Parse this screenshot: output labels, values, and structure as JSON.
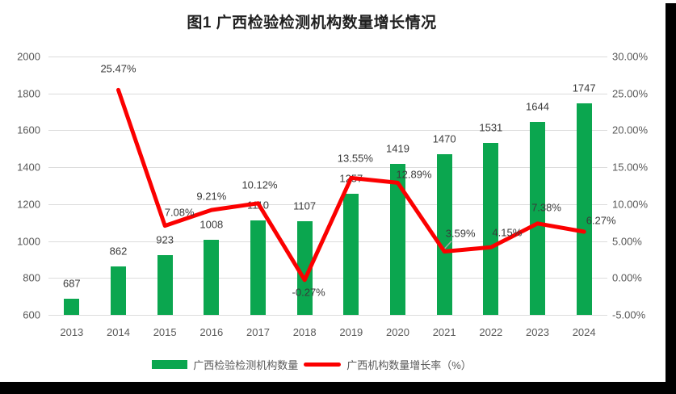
{
  "title": "图1 广西检验检测机构数量增长情况",
  "colors": {
    "bar": "#0ba64f",
    "line": "#fb0000",
    "grid": "#dcdcdc",
    "axis_text": "#595959",
    "data_label": "#3a3a3a",
    "leader": "#a6a6a6",
    "frame": "#000000"
  },
  "chart_data": {
    "type": "bar+line combo",
    "title": "图1 广西检验检测机构数量增长情况",
    "categories": [
      "2013",
      "2014",
      "2015",
      "2016",
      "2017",
      "2018",
      "2019",
      "2020",
      "2021",
      "2022",
      "2023",
      "2024"
    ],
    "series": [
      {
        "name": "广西检验检测机构数量",
        "type": "bar",
        "axis": "left",
        "values": [
          687,
          862,
          923,
          1008,
          1110,
          1107,
          1257,
          1419,
          1470,
          1531,
          1644,
          1747
        ],
        "labels": [
          "687",
          "862",
          "923",
          "1008",
          "1110",
          "1107",
          "1257",
          "1419",
          "1470",
          "1531",
          "1644",
          "1747"
        ]
      },
      {
        "name": "广西机构数量增长率（%）",
        "type": "line",
        "axis": "right",
        "values": [
          null,
          25.47,
          7.08,
          9.21,
          10.12,
          -0.27,
          13.55,
          12.89,
          3.59,
          4.15,
          7.38,
          6.27
        ],
        "labels": [
          "",
          "25.47%",
          "7.08%",
          "9.21%",
          "10.12%",
          "-0.27%",
          "13.55%",
          "12.89%",
          "3.59%",
          "4.15%",
          "7.38%",
          "6.27%"
        ]
      }
    ],
    "left_axis": {
      "min": 600,
      "max": 2000,
      "step": 200,
      "ticks": [
        "2000",
        "1800",
        "1600",
        "1400",
        "1200",
        "1000",
        "800",
        "600"
      ]
    },
    "right_axis": {
      "min": -5,
      "max": 30,
      "step": 5,
      "ticks": [
        "30.00%",
        "25.00%",
        "20.00%",
        "15.00%",
        "10.00%",
        "5.00%",
        "0.00%",
        "-5.00%"
      ]
    },
    "grid": true,
    "legend_position": "bottom"
  }
}
